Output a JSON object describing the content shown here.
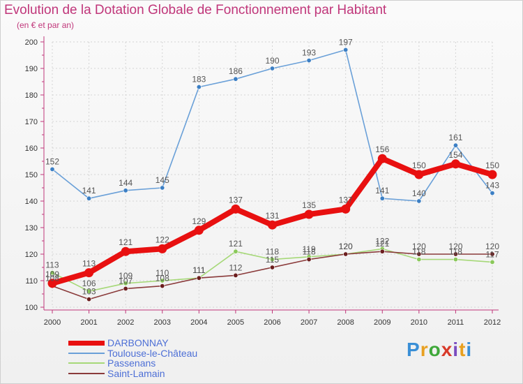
{
  "title": "Evolution de la Dotation Globale de Fonctionnement par Habitant",
  "subtitle": "(en € et par an)",
  "logo": {
    "text": "Proxiti",
    "letters": [
      "P",
      "r",
      "o",
      "x",
      "i",
      "t",
      "i"
    ],
    "colors": [
      "#3a8fd6",
      "#e8a020",
      "#3fa83a",
      "#d83a2a",
      "#7a4bbf",
      "#e8a020",
      "#3a8fd6"
    ]
  },
  "chart_data": {
    "type": "line",
    "title": "Evolution de la Dotation Globale de Fonctionnement par Habitant",
    "subtitle": "(en € et par an)",
    "xlabel": "",
    "ylabel": "",
    "x": [
      "2000",
      "2001",
      "2002",
      "2003",
      "2004",
      "2005",
      "2006",
      "2007",
      "2008",
      "2009",
      "2010",
      "2011",
      "2012"
    ],
    "ylim": [
      100,
      200
    ],
    "yticks": [
      "100",
      "110",
      "120",
      "130",
      "140",
      "150",
      "160",
      "170",
      "180",
      "190",
      "200"
    ],
    "grid": true,
    "legend": "bottom",
    "series": [
      {
        "name": "Toulouse-le-Château",
        "color": "#6aa0d8",
        "marker": "#3c7fc4",
        "values": [
          152,
          141,
          144,
          145,
          183,
          186,
          190,
          193,
          197,
          141,
          140,
          161,
          143
        ],
        "labels": [
          "152",
          "141",
          "144",
          "145",
          "183",
          "186",
          "190",
          "193",
          "197",
          "141",
          "140",
          "161",
          "143"
        ]
      },
      {
        "name": "Passenans",
        "color": "#a6d878",
        "marker": "#8ac85a",
        "values": [
          113,
          106,
          109,
          110,
          111,
          121,
          118,
          119,
          120,
          122,
          118,
          118,
          117
        ],
        "labels": [
          "113",
          "106",
          "109",
          "110",
          "111",
          "121",
          "118",
          "119",
          "120",
          "122",
          "118",
          "118",
          "117"
        ]
      },
      {
        "name": "Saint-Lamain",
        "color": "#8a3a3a",
        "marker": "#6b1e1e",
        "values": [
          108,
          103,
          107,
          108,
          111,
          112,
          115,
          118,
          120,
          121,
          120,
          120,
          120
        ],
        "labels": [
          "108",
          "103",
          "107",
          "108",
          "111",
          "112",
          "115",
          "118",
          "120",
          "121",
          "120",
          "120",
          "120"
        ]
      },
      {
        "name": "DARBONNAY",
        "color": "#e81010",
        "marker": "#e81010",
        "values": [
          109,
          113,
          121,
          122,
          129,
          137,
          131,
          135,
          137,
          156,
          150,
          154,
          150
        ],
        "labels": [
          "109",
          "113",
          "121",
          "122",
          "129",
          "137",
          "131",
          "135",
          "137",
          "156",
          "150",
          "154",
          "150"
        ]
      }
    ]
  },
  "legend": [
    {
      "name": "DARBONNAY",
      "color": "#e81010",
      "text_color": "#4d6fd6",
      "thickness": 7
    },
    {
      "name": "Toulouse-le-Château",
      "color": "#6aa0d8",
      "text_color": "#4d6fd6",
      "thickness": 2
    },
    {
      "name": "Passenans",
      "color": "#a6d878",
      "text_color": "#4d6fd6",
      "thickness": 2
    },
    {
      "name": "Saint-Lamain",
      "color": "#8a3a3a",
      "text_color": "#4d6fd6",
      "thickness": 2
    }
  ]
}
